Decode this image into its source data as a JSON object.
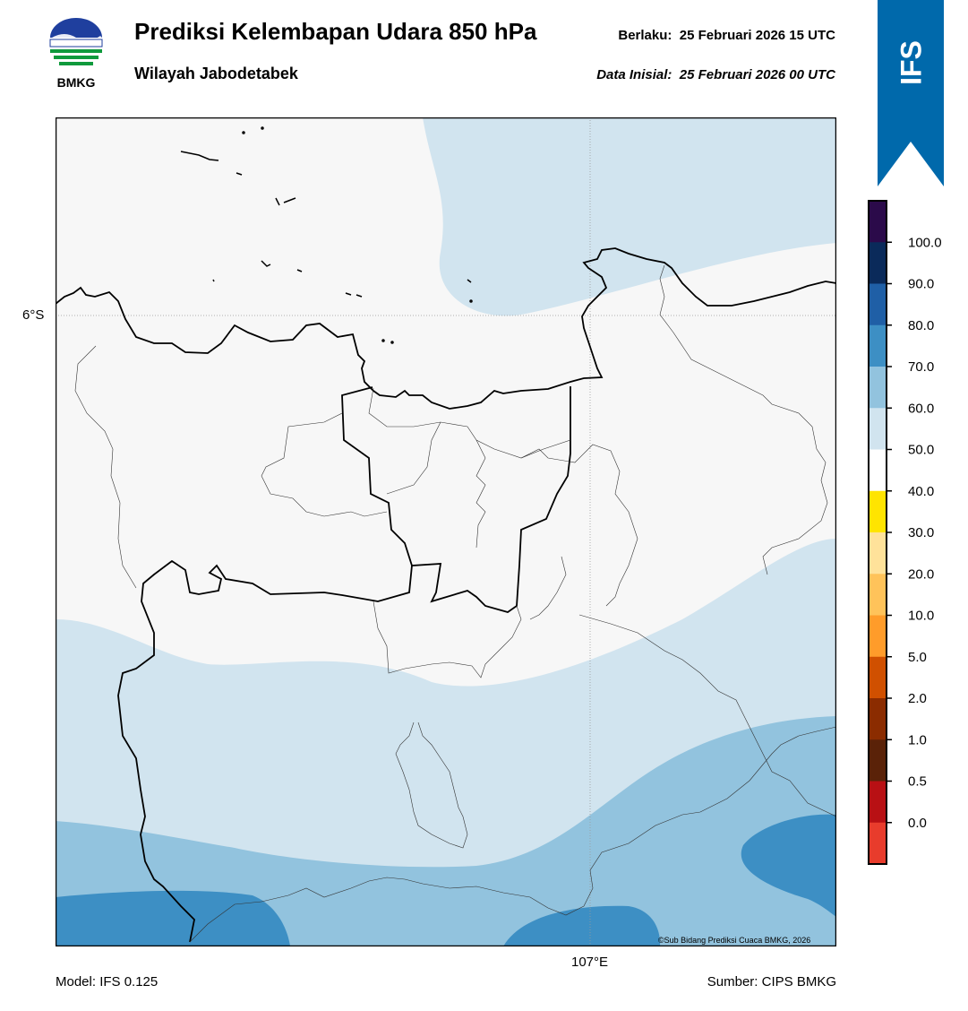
{
  "header": {
    "logo_text": "BMKG",
    "title": "Prediksi Kelembapan Udara 850 hPa",
    "subtitle": "Wilayah Jabodetabek",
    "valid_label": "Berlaku:",
    "valid_time": "25 Februari 2026 15 UTC",
    "init_label": "Data Inisial:",
    "init_time": "25 Februari 2026 00 UTC"
  },
  "badge": {
    "text": "IFS",
    "color": "#0069ab"
  },
  "map": {
    "lat_label": "6°S",
    "lon_label": "107°E",
    "credit": "©Sub Bidang Prediksi Cuaca BMKG, 2026"
  },
  "colorbar": {
    "labels": [
      "100.0",
      "90.0",
      "80.0",
      "70.0",
      "60.0",
      "50.0",
      "40.0",
      "30.0",
      "20.0",
      "10.0",
      "5.0",
      "2.0",
      "1.0",
      "0.5",
      "0.0"
    ],
    "colors_top_to_bottom": [
      "#2b0a4a",
      "#0a2a5a",
      "#1f5fa6",
      "#3d8fc4",
      "#92c3de",
      "#d1e4ef",
      "#ffffff",
      "#ffe400",
      "#ffe29a",
      "#ffc35a",
      "#ff9c2a",
      "#d05000",
      "#8b2c00",
      "#5a2208",
      "#b81014",
      "#e83c2c"
    ]
  },
  "footer": {
    "model": "Model: IFS 0.125",
    "source": "Sumber: CIPS BMKG"
  }
}
